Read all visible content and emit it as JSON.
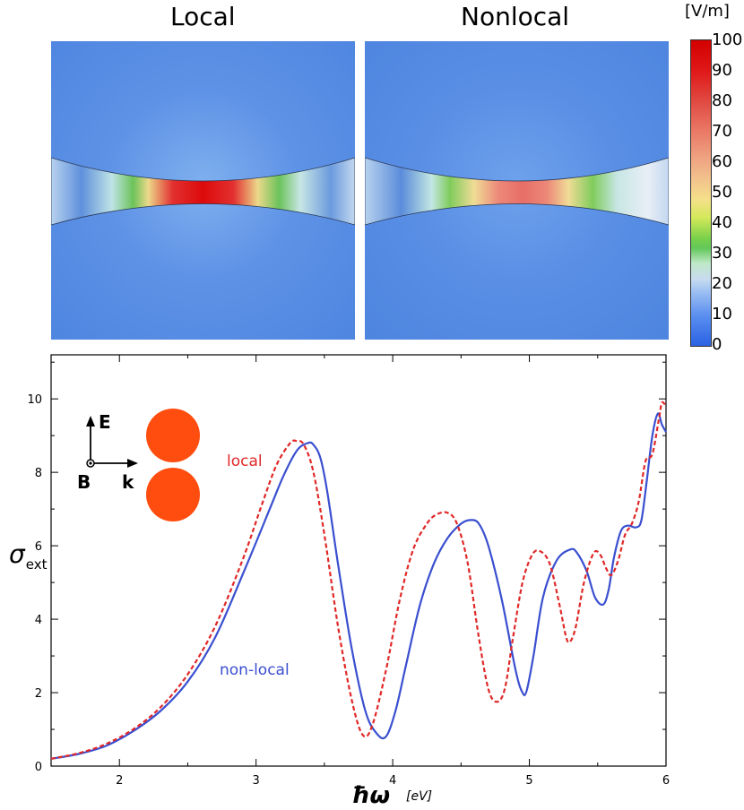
{
  "panels": {
    "local_title": "Local",
    "nonlocal_title": "Nonlocal"
  },
  "colorbar": {
    "unit": "[V/m]",
    "ticks": [
      "100",
      "90",
      "80",
      "70",
      "60",
      "50",
      "40",
      "30",
      "20",
      "10",
      "0"
    ]
  },
  "colors": {
    "local": "#e02828",
    "nonlocal": "#3a4fd0",
    "sphere": "#ff4d0f"
  },
  "inset": {
    "e_label": "E",
    "b_label": "B",
    "k_label": "k"
  },
  "chart_data": {
    "type": "line",
    "title": "",
    "xlabel": "ħω",
    "xunit": "[eV]",
    "ylabel": "σ",
    "ylabel_sub": "ext",
    "xlim": [
      1.5,
      6
    ],
    "ylim": [
      0,
      11.2
    ],
    "xticks": [
      2,
      3,
      4,
      5,
      6
    ],
    "yticks": [
      0,
      2,
      4,
      6,
      8,
      10
    ],
    "annotations": [
      {
        "text": "local",
        "series": "local"
      },
      {
        "text": "non-local",
        "series": "non-local"
      }
    ],
    "series": [
      {
        "name": "local",
        "style": "dashed",
        "x": [
          1.5,
          1.7,
          1.9,
          2.1,
          2.3,
          2.5,
          2.7,
          2.9,
          3.05,
          3.15,
          3.25,
          3.3,
          3.35,
          3.42,
          3.5,
          3.6,
          3.7,
          3.78,
          3.85,
          3.95,
          4.05,
          4.15,
          4.25,
          4.32,
          4.4,
          4.47,
          4.55,
          4.63,
          4.7,
          4.76,
          4.82,
          4.88,
          4.95,
          5.02,
          5.08,
          5.15,
          5.22,
          5.27,
          5.3,
          5.34,
          5.4,
          5.47,
          5.52,
          5.56,
          5.6,
          5.65,
          5.7,
          5.75,
          5.8,
          5.85,
          5.9,
          5.95,
          5.97,
          6.0
        ],
        "y": [
          0.2,
          0.35,
          0.6,
          1.0,
          1.6,
          2.5,
          3.8,
          5.6,
          7.2,
          8.2,
          8.8,
          8.85,
          8.75,
          8.0,
          6.3,
          3.8,
          1.8,
          0.85,
          1.1,
          2.6,
          4.5,
          5.9,
          6.6,
          6.85,
          6.9,
          6.6,
          5.5,
          3.5,
          2.1,
          1.75,
          2.1,
          3.5,
          5.0,
          5.75,
          5.85,
          5.5,
          4.4,
          3.5,
          3.4,
          3.8,
          5.0,
          5.8,
          5.75,
          5.4,
          5.2,
          5.6,
          6.3,
          6.6,
          7.2,
          8.3,
          8.5,
          9.5,
          9.9,
          9.8
        ]
      },
      {
        "name": "non-local",
        "style": "solid",
        "x": [
          1.5,
          1.7,
          1.9,
          2.1,
          2.3,
          2.5,
          2.7,
          2.9,
          3.1,
          3.2,
          3.3,
          3.38,
          3.42,
          3.47,
          3.52,
          3.6,
          3.7,
          3.8,
          3.88,
          3.95,
          4.02,
          4.1,
          4.2,
          4.3,
          4.4,
          4.5,
          4.57,
          4.63,
          4.7,
          4.8,
          4.9,
          4.95,
          4.98,
          5.03,
          5.1,
          5.2,
          5.3,
          5.35,
          5.42,
          5.48,
          5.54,
          5.58,
          5.62,
          5.67,
          5.72,
          5.78,
          5.82,
          5.86,
          5.9,
          5.94,
          5.97,
          6.0
        ],
        "y": [
          0.2,
          0.33,
          0.55,
          0.95,
          1.5,
          2.3,
          3.5,
          5.2,
          7.0,
          7.9,
          8.6,
          8.8,
          8.75,
          8.4,
          7.5,
          5.5,
          3.2,
          1.5,
          0.9,
          0.8,
          1.5,
          2.8,
          4.4,
          5.5,
          6.2,
          6.6,
          6.7,
          6.6,
          6.0,
          4.5,
          2.6,
          2.0,
          2.05,
          3.0,
          4.6,
          5.6,
          5.9,
          5.8,
          5.3,
          4.6,
          4.4,
          4.8,
          5.7,
          6.4,
          6.55,
          6.5,
          6.7,
          7.8,
          9.0,
          9.6,
          9.3,
          9.1
        ]
      }
    ]
  }
}
